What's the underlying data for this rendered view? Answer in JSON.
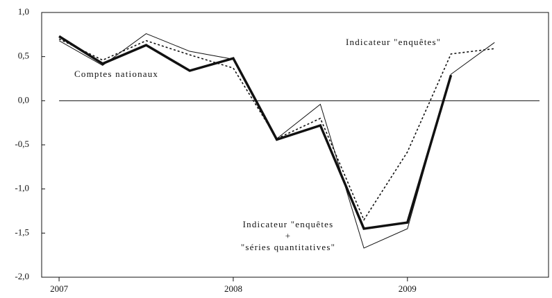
{
  "chart_data": {
    "type": "line",
    "x": [
      2007.0,
      2007.25,
      2007.5,
      2007.75,
      2008.0,
      2008.25,
      2008.5,
      2008.75,
      2009.0,
      2009.25,
      2009.5
    ],
    "series": [
      {
        "style": "thin",
        "color": "#111",
        "values": [
          0.68,
          0.4,
          0.76,
          0.56,
          0.47,
          -0.43,
          -0.04,
          -1.67,
          -1.45,
          0.3,
          0.66
        ]
      },
      {
        "style": "dotted",
        "color": "#111",
        "values": [
          0.7,
          0.46,
          0.68,
          0.52,
          0.37,
          -0.43,
          -0.2,
          -1.35,
          -0.58,
          0.53,
          0.59
        ]
      },
      {
        "style": "thick",
        "color": "#111",
        "values": [
          0.73,
          0.42,
          0.63,
          0.34,
          0.48,
          -0.44,
          -0.28,
          -1.45,
          -1.38,
          0.29,
          null
        ]
      }
    ],
    "xlim": [
      2006.9,
      2009.81
    ],
    "xticks": [
      2007,
      2008,
      2009
    ],
    "ylim": [
      -2.0,
      1.0
    ],
    "yticks": [
      {
        "value": -2.0,
        "label": "-2,0"
      },
      {
        "value": -1.5,
        "label": "-1,5"
      },
      {
        "value": -1.0,
        "label": "-1,0"
      },
      {
        "value": -0.5,
        "label": "-0,5"
      },
      {
        "value": 0.0,
        "label": "0,0"
      },
      {
        "value": 0.5,
        "label": "0,5"
      },
      {
        "value": 1.0,
        "label": "1,0"
      }
    ],
    "zero_line": true,
    "annotations": [
      {
        "lines": [
          "Comptes nationaux"
        ]
      },
      {
        "lines": [
          "Indicateur \"enquêtes\""
        ]
      },
      {
        "lines": [
          "Indicateur \"enquêtes",
          "+",
          "\"séries quantitatives\""
        ]
      }
    ]
  }
}
